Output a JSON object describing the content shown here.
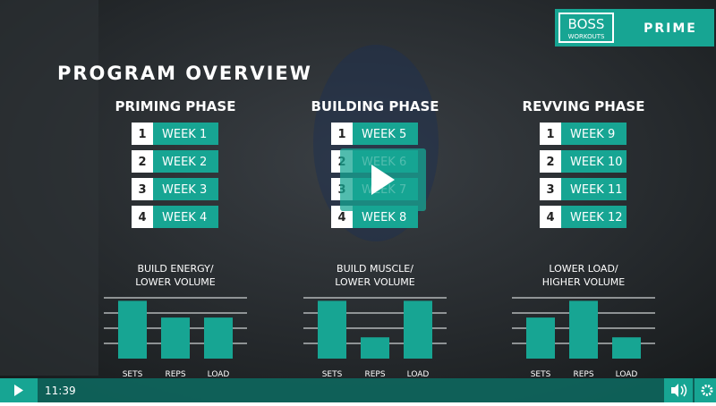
{
  "logo": {
    "brand": "BOSS",
    "sub": "WORKOUTS",
    "product": "PRIME"
  },
  "title": "PROGRAM OVERVIEW",
  "phases": [
    {
      "name": "PRIMING PHASE",
      "weeks": [
        {
          "number": "1",
          "label": "WEEK 1"
        },
        {
          "number": "2",
          "label": "WEEK 2"
        },
        {
          "number": "3",
          "label": "WEEK 3"
        },
        {
          "number": "4",
          "label": "WEEK 4"
        }
      ],
      "chart": {
        "type": "bar",
        "caption": [
          "BUILD ENERGY/",
          "LOWER VOLUME"
        ],
        "categories": [
          "SETS",
          "REPS",
          "LOAD"
        ],
        "values": [
          3.8,
          2.7,
          2.7
        ],
        "ylim": [
          0,
          4
        ],
        "grid_lines": [
          1,
          2,
          3,
          4
        ],
        "color": "#17a593"
      }
    },
    {
      "name": "BUILDING PHASE",
      "weeks": [
        {
          "number": "1",
          "label": "WEEK 5"
        },
        {
          "number": "2",
          "label": "WEEK 6"
        },
        {
          "number": "3",
          "label": "WEEK 7"
        },
        {
          "number": "4",
          "label": "WEEK 8"
        }
      ],
      "chart": {
        "type": "bar",
        "caption": [
          "BUILD MUSCLE/",
          "LOWER VOLUME"
        ],
        "categories": [
          "SETS",
          "REPS",
          "LOAD"
        ],
        "values": [
          3.8,
          1.4,
          3.8
        ],
        "ylim": [
          0,
          4
        ],
        "grid_lines": [
          1,
          2,
          3,
          4
        ],
        "color": "#17a593"
      }
    },
    {
      "name": "REVVING PHASE",
      "weeks": [
        {
          "number": "1",
          "label": "WEEK 9"
        },
        {
          "number": "2",
          "label": "WEEK 10"
        },
        {
          "number": "3",
          "label": "WEEK 11"
        },
        {
          "number": "4",
          "label": "WEEK 12"
        }
      ],
      "chart": {
        "type": "bar",
        "caption": [
          "LOWER LOAD/",
          "HIGHER VOLUME"
        ],
        "categories": [
          "SETS",
          "REPS",
          "LOAD"
        ],
        "values": [
          2.7,
          3.8,
          1.4
        ],
        "ylim": [
          0,
          4
        ],
        "grid_lines": [
          1,
          2,
          3,
          4
        ],
        "color": "#17a593"
      }
    }
  ],
  "player": {
    "time": "11:39"
  }
}
